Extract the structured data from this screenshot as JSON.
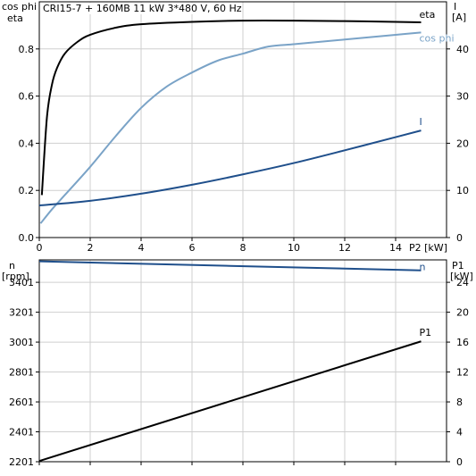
{
  "title": "CRI15-7 + 160MB   11 kW   3*480 V, 60 Hz",
  "chart_data": [
    {
      "type": "line",
      "x_label": "P2 [kW]",
      "x_ticks": [
        "0",
        "2",
        "4",
        "6",
        "8",
        "10",
        "12",
        "14"
      ],
      "xlim": [
        0,
        16
      ],
      "left_axis_label": [
        "cos phi",
        "eta"
      ],
      "left_ylim": [
        0,
        1.0
      ],
      "left_ticks": [
        "0.0",
        "0.2",
        "0.4",
        "0.6",
        "0.8"
      ],
      "right_axis_label": [
        "I",
        "[A]"
      ],
      "right_ylim": [
        0,
        50
      ],
      "right_ticks": [
        "0",
        "10",
        "20",
        "30",
        "40"
      ],
      "grid": true,
      "series": [
        {
          "name": "eta",
          "axis": "left",
          "color": "#000000",
          "x": [
            0.1,
            0.3,
            0.5,
            0.7,
            1.0,
            1.5,
            2,
            3,
            4,
            6,
            8,
            10,
            12,
            14,
            15
          ],
          "y": [
            0.18,
            0.51,
            0.65,
            0.72,
            0.78,
            0.83,
            0.86,
            0.89,
            0.905,
            0.915,
            0.92,
            0.92,
            0.918,
            0.915,
            0.913
          ]
        },
        {
          "name": "cos phi",
          "axis": "left",
          "color": "#7aa3c7",
          "x": [
            0.05,
            0.5,
            1,
            2,
            3,
            4,
            5,
            6,
            7,
            8,
            9,
            10,
            11,
            12,
            13,
            14,
            15
          ],
          "y": [
            0.06,
            0.12,
            0.18,
            0.3,
            0.43,
            0.55,
            0.64,
            0.7,
            0.75,
            0.78,
            0.81,
            0.82,
            0.83,
            0.84,
            0.85,
            0.86,
            0.87
          ]
        },
        {
          "name": "I",
          "axis": "right",
          "color": "#1f4f8b",
          "x": [
            0,
            2,
            4,
            6,
            8,
            10,
            12,
            14,
            15
          ],
          "y": [
            6.8,
            7.8,
            9.3,
            11.2,
            13.4,
            15.8,
            18.5,
            21.3,
            22.7
          ]
        }
      ]
    },
    {
      "type": "line",
      "left_axis_label": [
        "n",
        "[rpm]"
      ],
      "left_ylim": [
        2201,
        3551
      ],
      "left_ticks": [
        "2201",
        "2401",
        "2601",
        "2801",
        "3001",
        "3201",
        "3401"
      ],
      "right_axis_label": [
        "P1",
        "[kW]"
      ],
      "right_ylim": [
        0,
        27
      ],
      "right_ticks": [
        "0",
        "4",
        "8",
        "12",
        "16",
        "20",
        "24"
      ],
      "xlim": [
        0,
        16
      ],
      "grid": true,
      "series": [
        {
          "name": "n",
          "axis": "left",
          "color": "#1f4f8b",
          "x": [
            0,
            15
          ],
          "y": [
            3541,
            3481
          ]
        },
        {
          "name": "P1",
          "axis": "right",
          "color": "#000000",
          "x": [
            0,
            15
          ],
          "y": [
            0.1,
            16.1
          ]
        }
      ]
    }
  ]
}
